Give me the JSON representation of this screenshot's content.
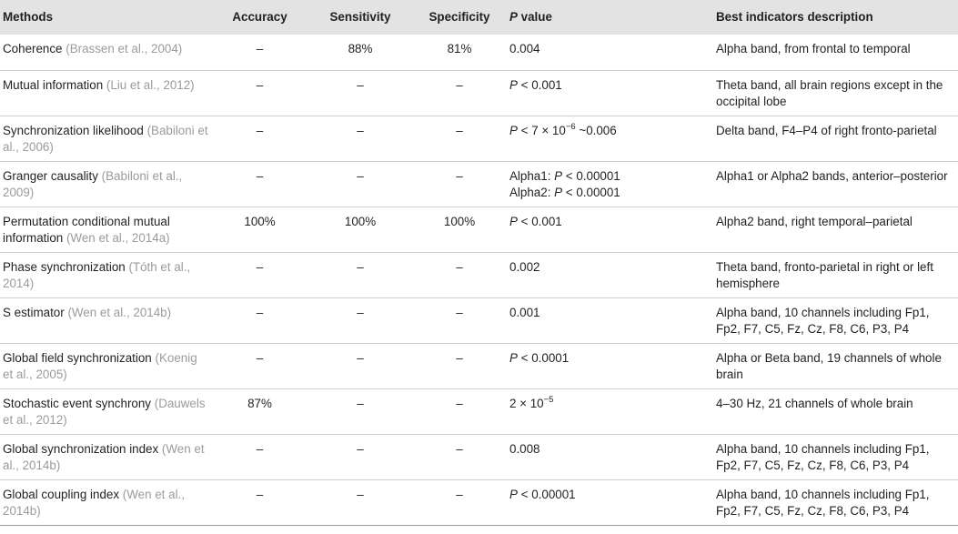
{
  "headers": {
    "methods": "Methods",
    "accuracy": "Accuracy",
    "sensitivity": "Sensitivity",
    "specificity": "Specificity",
    "pvalue_p": "P",
    "pvalue_rest": " value",
    "best": "Best indicators description"
  },
  "rows": [
    {
      "method": "Coherence ",
      "cite": "(Brassen et al., 2004)",
      "accuracy": "–",
      "sensitivity": "88%",
      "specificity": "81%",
      "p": "0.004",
      "best": "Alpha band, from frontal to temporal"
    },
    {
      "method": "Mutual information ",
      "cite": "(Liu et al., 2012)",
      "accuracy": "–",
      "sensitivity": "–",
      "specificity": "–",
      "p_ital": "P",
      "p_rest": " < 0.001",
      "best": "Theta band, all brain regions except in the occipital lobe"
    },
    {
      "method": "Synchronization likelihood ",
      "cite": "(Babiloni et al., 2006)",
      "accuracy": "–",
      "sensitivity": "–",
      "specificity": "–",
      "p_ital": "P",
      "p_rest": " < 7 × 10",
      "p_sup": "−6",
      "p_tail": " ~0.006",
      "best": "Delta band, F4–P4 of right fronto-parietal"
    },
    {
      "method": "Granger causality ",
      "cite": "(Babiloni et al., 2009)",
      "accuracy": "–",
      "sensitivity": "–",
      "specificity": "–",
      "p1_label": "Alpha1: ",
      "p1_ital": "P",
      "p1_rest": " < 0.00001",
      "p2_label": "Alpha2: ",
      "p2_ital": "P",
      "p2_rest": " < 0.00001",
      "best": "Alpha1 or Alpha2 bands, anterior–posterior"
    },
    {
      "method": "Permutation conditional mutual information ",
      "cite": "(Wen et al., 2014a)",
      "accuracy": "100%",
      "sensitivity": "100%",
      "specificity": "100%",
      "p_ital": "P",
      "p_rest": " < 0.001",
      "best": "Alpha2 band, right temporal–parietal"
    },
    {
      "method": "Phase synchronization ",
      "cite": "(Tóth et al., 2014)",
      "accuracy": "–",
      "sensitivity": "–",
      "specificity": "–",
      "p": "0.002",
      "best": "Theta band, fronto-parietal in right or left hemisphere"
    },
    {
      "method": "S estimator ",
      "cite": "(Wen et al., 2014b)",
      "accuracy": "–",
      "sensitivity": "–",
      "specificity": "–",
      "p": "0.001",
      "best": "Alpha band, 10 channels including Fp1, Fp2, F7, C5, Fz, Cz, F8, C6, P3, P4"
    },
    {
      "method": "Global field synchronization ",
      "cite": "(Koenig et al., 2005)",
      "accuracy": "–",
      "sensitivity": "–",
      "specificity": "–",
      "p_ital": "P",
      "p_rest": " < 0.0001",
      "best": "Alpha or Beta band, 19 channels of whole brain"
    },
    {
      "method": "Stochastic event synchrony ",
      "cite": "(Dauwels et al., 2012)",
      "accuracy": "87%",
      "sensitivity": "–",
      "specificity": "–",
      "p_rest": "2 × 10",
      "p_sup": "−5",
      "best": "4–30 Hz, 21 channels of whole brain"
    },
    {
      "method": "Global synchronization index ",
      "cite": "(Wen et al., 2014b)",
      "accuracy": "–",
      "sensitivity": "–",
      "specificity": "–",
      "p": "0.008",
      "best": "Alpha band, 10 channels including Fp1, Fp2, F7, C5, Fz, Cz, F8, C6, P3, P4"
    },
    {
      "method": "Global coupling index ",
      "cite": "(Wen et al., 2014b)",
      "accuracy": "–",
      "sensitivity": "–",
      "specificity": "–",
      "p_ital": "P",
      "p_rest": " < 0.00001",
      "best": "Alpha band, 10 channels including Fp1, Fp2, F7, C5, Fz, Cz, F8, C6, P3, P4"
    }
  ]
}
